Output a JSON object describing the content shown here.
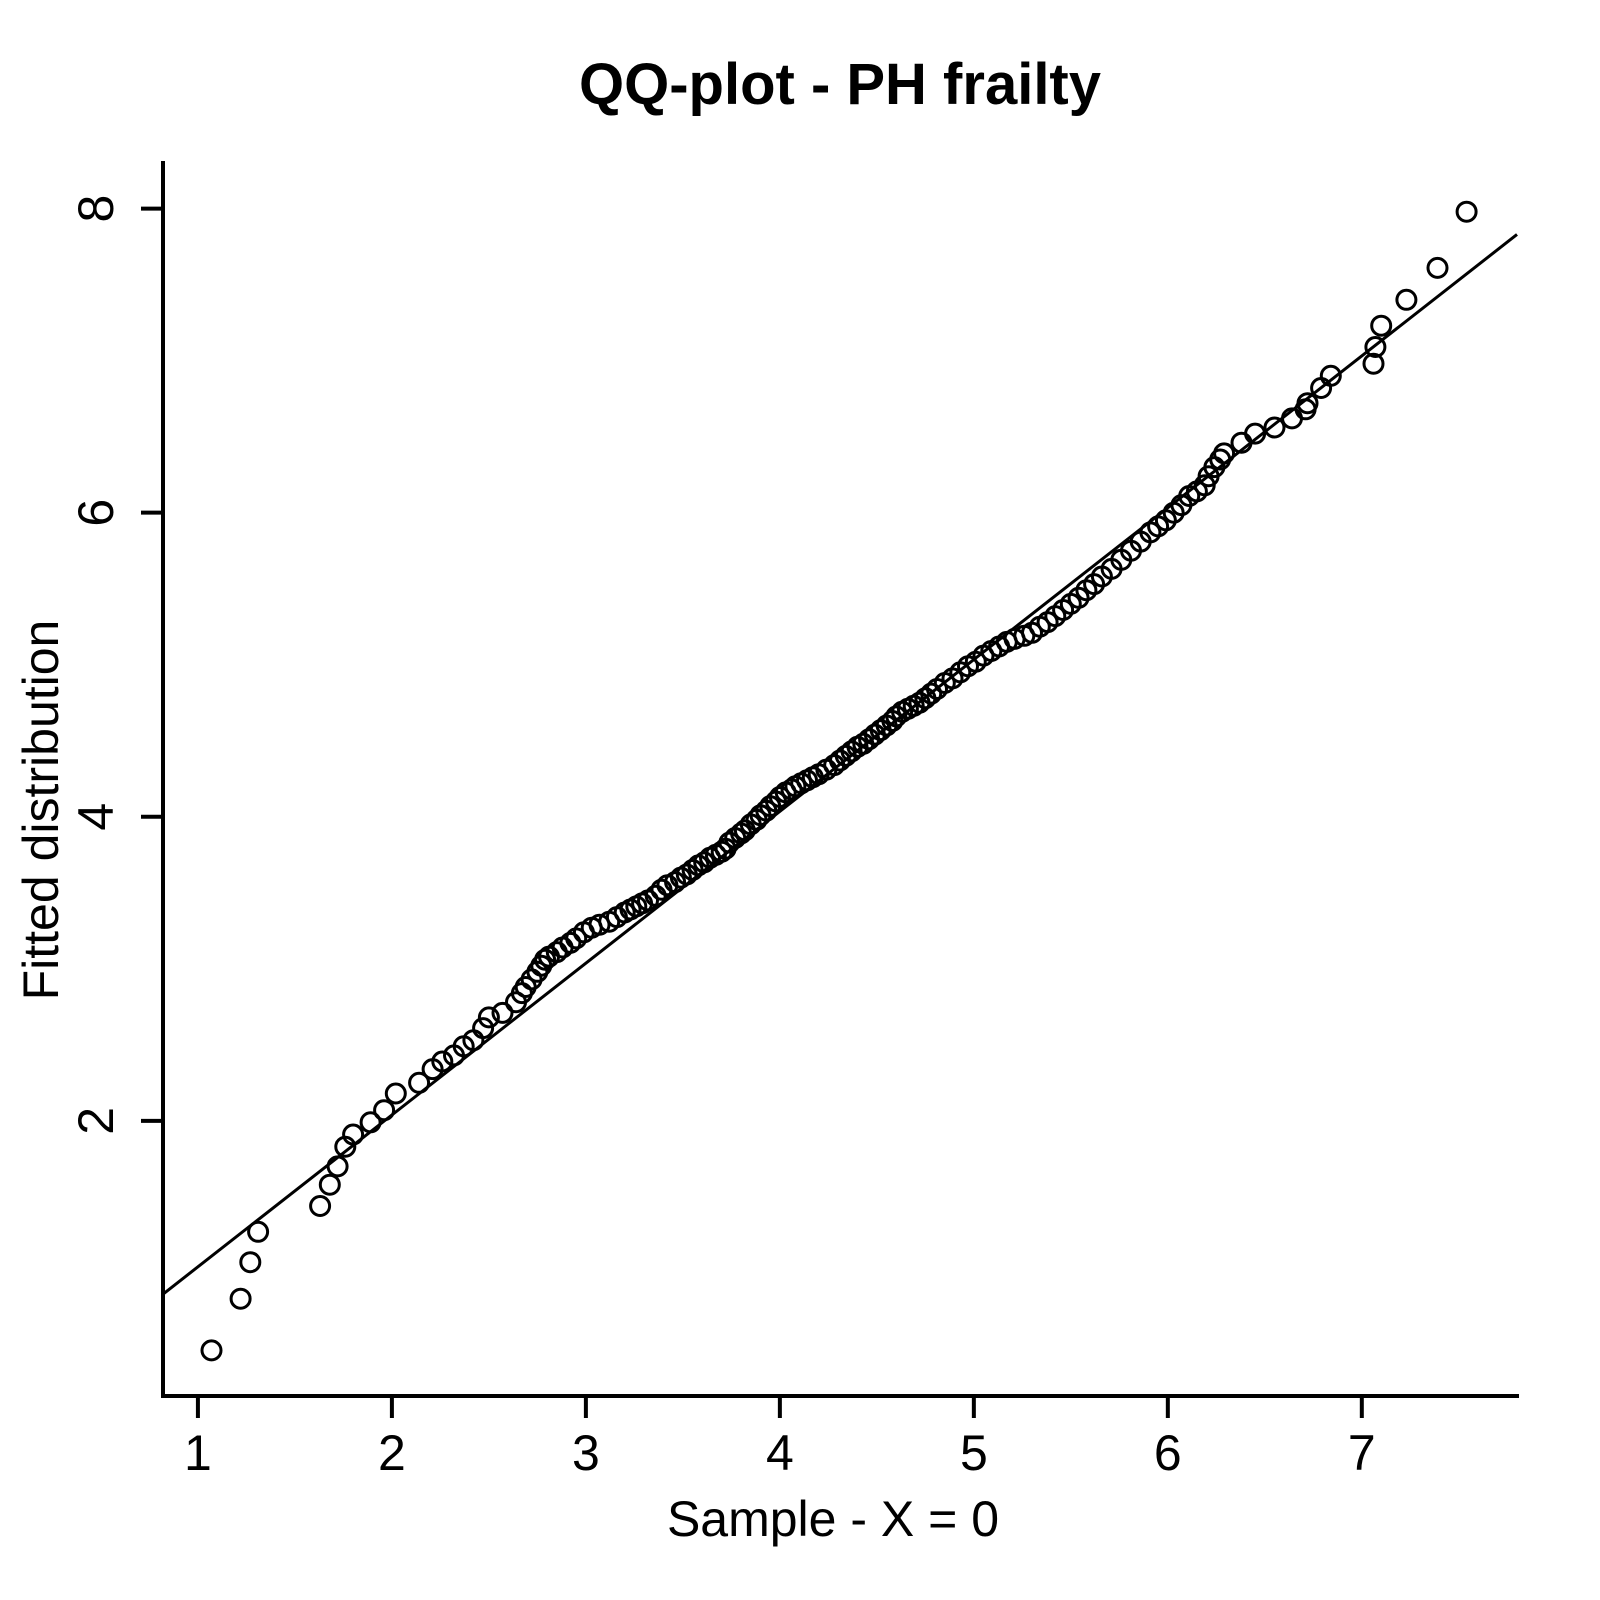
{
  "colors": {
    "foreground": "#000000",
    "background": "#ffffff"
  },
  "chart_data": {
    "type": "scatter",
    "title": "QQ-plot - PH frailty",
    "xlabel": "Sample - X = 0",
    "ylabel": "Fitted distribution",
    "grid": false,
    "legend": null,
    "x_ticks": [
      1,
      2,
      3,
      4,
      5,
      6,
      7
    ],
    "y_ticks": [
      2,
      4,
      6,
      8
    ],
    "xlim": [
      0.82,
      7.8
    ],
    "ylim": [
      0.19,
      8.3
    ],
    "marker": {
      "shape": "open-circle",
      "radius": 9.5
    },
    "reference_line": {
      "x1": 0.82,
      "y1": 0.86,
      "x2": 7.8,
      "y2": 7.83
    },
    "points": [
      [
        1.07,
        0.49
      ],
      [
        1.22,
        0.83
      ],
      [
        1.27,
        1.07
      ],
      [
        1.31,
        1.27
      ],
      [
        1.63,
        1.44
      ],
      [
        1.68,
        1.58
      ],
      [
        1.72,
        1.7
      ],
      [
        1.76,
        1.83
      ],
      [
        1.8,
        1.91
      ],
      [
        1.89,
        1.99
      ],
      [
        1.96,
        2.07
      ],
      [
        2.02,
        2.18
      ],
      [
        2.14,
        2.25
      ],
      [
        2.21,
        2.34
      ],
      [
        2.26,
        2.39
      ],
      [
        2.32,
        2.43
      ],
      [
        2.37,
        2.49
      ],
      [
        2.42,
        2.53
      ],
      [
        2.47,
        2.61
      ],
      [
        2.5,
        2.68
      ],
      [
        2.57,
        2.71
      ],
      [
        2.64,
        2.78
      ],
      [
        2.67,
        2.84
      ],
      [
        2.69,
        2.88
      ],
      [
        2.72,
        2.93
      ],
      [
        2.75,
        2.98
      ],
      [
        2.77,
        3.02
      ],
      [
        2.79,
        3.06
      ],
      [
        2.81,
        3.08
      ],
      [
        2.85,
        3.11
      ],
      [
        2.88,
        3.14
      ],
      [
        2.92,
        3.17
      ],
      [
        2.95,
        3.2
      ],
      [
        2.99,
        3.24
      ],
      [
        3.03,
        3.27
      ],
      [
        3.07,
        3.29
      ],
      [
        3.12,
        3.31
      ],
      [
        3.16,
        3.34
      ],
      [
        3.2,
        3.37
      ],
      [
        3.23,
        3.39
      ],
      [
        3.26,
        3.41
      ],
      [
        3.29,
        3.43
      ],
      [
        3.32,
        3.45
      ],
      [
        3.36,
        3.48
      ],
      [
        3.39,
        3.52
      ],
      [
        3.42,
        3.55
      ],
      [
        3.46,
        3.57
      ],
      [
        3.49,
        3.6
      ],
      [
        3.52,
        3.62
      ],
      [
        3.55,
        3.65
      ],
      [
        3.58,
        3.68
      ],
      [
        3.61,
        3.7
      ],
      [
        3.64,
        3.73
      ],
      [
        3.67,
        3.75
      ],
      [
        3.7,
        3.77
      ],
      [
        3.72,
        3.79
      ],
      [
        3.74,
        3.83
      ],
      [
        3.77,
        3.86
      ],
      [
        3.8,
        3.89
      ],
      [
        3.82,
        3.91
      ],
      [
        3.85,
        3.95
      ],
      [
        3.88,
        3.98
      ],
      [
        3.9,
        4.01
      ],
      [
        3.93,
        4.04
      ],
      [
        3.95,
        4.07
      ],
      [
        3.98,
        4.1
      ],
      [
        4.0,
        4.13
      ],
      [
        4.03,
        4.16
      ],
      [
        4.06,
        4.18
      ],
      [
        4.08,
        4.2
      ],
      [
        4.11,
        4.22
      ],
      [
        4.14,
        4.24
      ],
      [
        4.17,
        4.26
      ],
      [
        4.2,
        4.28
      ],
      [
        4.24,
        4.31
      ],
      [
        4.28,
        4.34
      ],
      [
        4.31,
        4.37
      ],
      [
        4.34,
        4.4
      ],
      [
        4.37,
        4.43
      ],
      [
        4.4,
        4.46
      ],
      [
        4.43,
        4.48
      ],
      [
        4.46,
        4.51
      ],
      [
        4.49,
        4.54
      ],
      [
        4.52,
        4.57
      ],
      [
        4.55,
        4.6
      ],
      [
        4.58,
        4.63
      ],
      [
        4.6,
        4.66
      ],
      [
        4.63,
        4.69
      ],
      [
        4.66,
        4.71
      ],
      [
        4.69,
        4.73
      ],
      [
        4.72,
        4.75
      ],
      [
        4.75,
        4.78
      ],
      [
        4.78,
        4.81
      ],
      [
        4.81,
        4.84
      ],
      [
        4.85,
        4.88
      ],
      [
        4.89,
        4.91
      ],
      [
        4.93,
        4.95
      ],
      [
        4.97,
        4.99
      ],
      [
        5.01,
        5.02
      ],
      [
        5.05,
        5.06
      ],
      [
        5.09,
        5.09
      ],
      [
        5.13,
        5.12
      ],
      [
        5.17,
        5.15
      ],
      [
        5.21,
        5.17
      ],
      [
        5.26,
        5.19
      ],
      [
        5.3,
        5.21
      ],
      [
        5.34,
        5.25
      ],
      [
        5.38,
        5.28
      ],
      [
        5.42,
        5.32
      ],
      [
        5.46,
        5.36
      ],
      [
        5.5,
        5.4
      ],
      [
        5.54,
        5.44
      ],
      [
        5.58,
        5.49
      ],
      [
        5.62,
        5.53
      ],
      [
        5.66,
        5.58
      ],
      [
        5.71,
        5.63
      ],
      [
        5.76,
        5.69
      ],
      [
        5.81,
        5.75
      ],
      [
        5.86,
        5.81
      ],
      [
        5.91,
        5.87
      ],
      [
        5.95,
        5.91
      ],
      [
        5.99,
        5.95
      ],
      [
        6.03,
        6.0
      ],
      [
        6.07,
        6.05
      ],
      [
        6.11,
        6.11
      ],
      [
        6.15,
        6.14
      ],
      [
        6.19,
        6.18
      ],
      [
        6.21,
        6.24
      ],
      [
        6.24,
        6.3
      ],
      [
        6.27,
        6.35
      ],
      [
        6.29,
        6.39
      ],
      [
        6.38,
        6.46
      ],
      [
        6.45,
        6.52
      ],
      [
        6.55,
        6.56
      ],
      [
        6.64,
        6.62
      ],
      [
        6.71,
        6.68
      ],
      [
        6.72,
        6.72
      ],
      [
        6.79,
        6.82
      ],
      [
        6.84,
        6.9
      ],
      [
        7.06,
        6.98
      ],
      [
        7.07,
        7.09
      ],
      [
        7.1,
        7.23
      ],
      [
        7.23,
        7.4
      ],
      [
        7.39,
        7.61
      ],
      [
        7.54,
        7.98
      ]
    ]
  }
}
